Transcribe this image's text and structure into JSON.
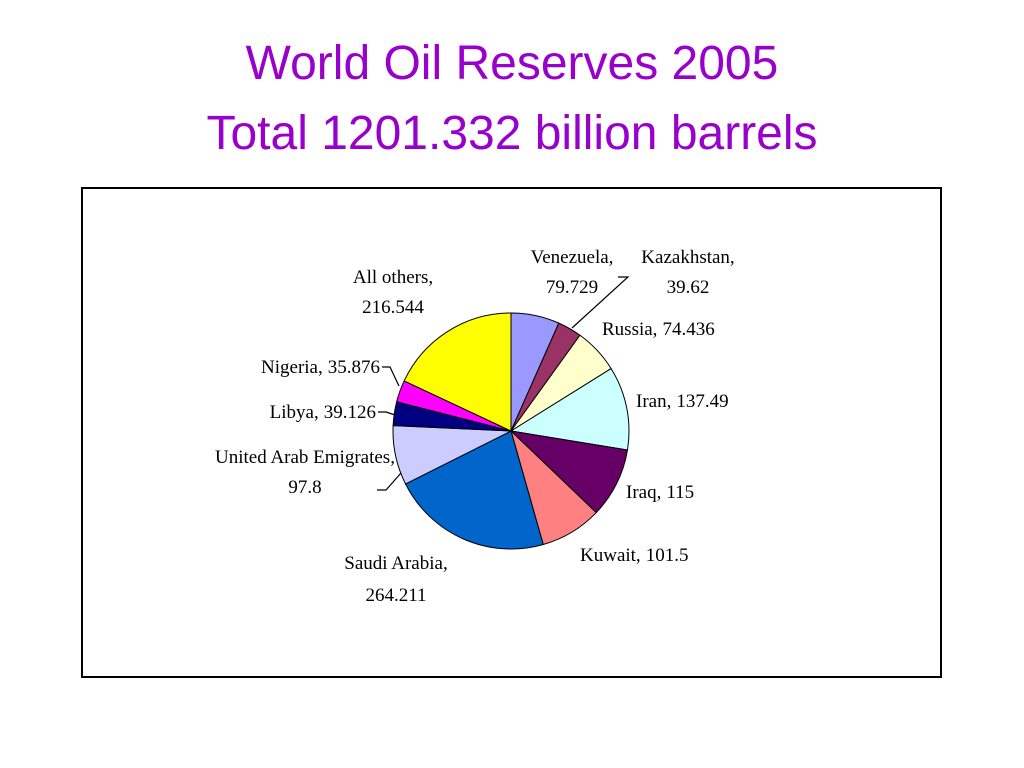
{
  "chart_data": {
    "type": "pie",
    "title": "World Oil Reserves 2005",
    "subtitle": "Total 1201.332 billion barrels",
    "categories": [
      "Venezuela,",
      "Kazakhstan,",
      "Russia,",
      "Iran,",
      "Iraq,",
      "Kuwait,",
      "Saudi Arabia,",
      "United Arab Emigrates,",
      "Libya,",
      "Nigeria,",
      "All others,"
    ],
    "values": [
      79.729,
      39.62,
      74.436,
      137.49,
      115,
      101.5,
      264.211,
      97.8,
      39.126,
      35.876,
      216.544
    ],
    "colors": [
      "#9999ff",
      "#993366",
      "#ffffcc",
      "#ccffff",
      "#660066",
      "#ff8080",
      "#0066cc",
      "#ccccff",
      "#000080",
      "#ff00ff",
      "#ffff00"
    ]
  }
}
